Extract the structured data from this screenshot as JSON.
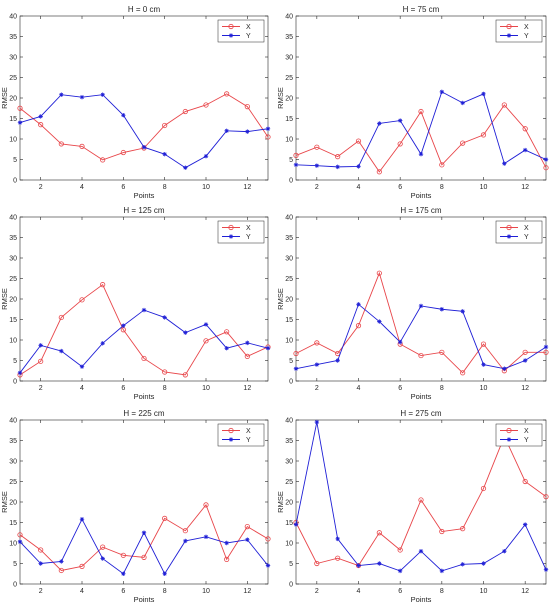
{
  "chart_data": [
    {
      "type": "line",
      "title": "H = 0 cm",
      "xlabel": "Points",
      "ylabel": "RMSE",
      "xlim": [
        1,
        13
      ],
      "ylim": [
        0,
        40
      ],
      "x_ticks": [
        2,
        4,
        6,
        8,
        10,
        12
      ],
      "y_ticks": [
        0,
        5,
        10,
        15,
        20,
        25,
        30,
        35,
        40
      ],
      "x": [
        1,
        2,
        3,
        4,
        5,
        6,
        7,
        8,
        9,
        10,
        11,
        12,
        13
      ],
      "legend_position": "top-right",
      "series": [
        {
          "name": "X",
          "color": "#e8464a",
          "marker": "circle",
          "values": [
            17.5,
            13.5,
            8.8,
            8.2,
            4.9,
            6.7,
            7.8,
            13.3,
            16.7,
            18.3,
            21.0,
            17.9,
            10.5
          ]
        },
        {
          "name": "Y",
          "color": "#1f1fd6",
          "marker": "star",
          "values": [
            14.0,
            15.5,
            20.8,
            20.2,
            20.8,
            15.8,
            8.0,
            6.3,
            3.0,
            5.8,
            12.0,
            11.8,
            12.5
          ]
        }
      ]
    },
    {
      "type": "line",
      "title": "H = 75 cm",
      "xlabel": "Points",
      "ylabel": "RMSE",
      "xlim": [
        1,
        13
      ],
      "ylim": [
        0,
        40
      ],
      "x_ticks": [
        2,
        4,
        6,
        8,
        10,
        12
      ],
      "y_ticks": [
        0,
        5,
        10,
        15,
        20,
        25,
        30,
        35,
        40
      ],
      "x": [
        1,
        2,
        3,
        4,
        5,
        6,
        7,
        8,
        9,
        10,
        11,
        12,
        13
      ],
      "legend_position": "top-right",
      "series": [
        {
          "name": "X",
          "color": "#e8464a",
          "marker": "circle",
          "values": [
            6.0,
            8.0,
            5.7,
            9.5,
            2.0,
            8.8,
            16.7,
            3.7,
            9.0,
            11.0,
            18.3,
            12.5,
            3.0
          ]
        },
        {
          "name": "Y",
          "color": "#1f1fd6",
          "marker": "star",
          "values": [
            3.7,
            3.5,
            3.2,
            3.3,
            13.8,
            14.5,
            6.3,
            21.5,
            18.8,
            21.0,
            4.0,
            7.3,
            5.0
          ]
        }
      ]
    },
    {
      "type": "line",
      "title": "H = 125 cm",
      "xlabel": "Points",
      "ylabel": "RMSE",
      "xlim": [
        1,
        13
      ],
      "ylim": [
        0,
        40
      ],
      "x_ticks": [
        2,
        4,
        6,
        8,
        10,
        12
      ],
      "y_ticks": [
        0,
        5,
        10,
        15,
        20,
        25,
        30,
        35,
        40
      ],
      "x": [
        1,
        2,
        3,
        4,
        5,
        6,
        7,
        8,
        9,
        10,
        11,
        12,
        13
      ],
      "legend_position": "top-right",
      "series": [
        {
          "name": "X",
          "color": "#e8464a",
          "marker": "circle",
          "values": [
            1.5,
            4.8,
            15.5,
            19.8,
            23.5,
            12.5,
            5.5,
            2.2,
            1.5,
            9.8,
            12.0,
            6.0,
            8.3
          ]
        },
        {
          "name": "Y",
          "color": "#1f1fd6",
          "marker": "star",
          "values": [
            2.0,
            8.7,
            7.3,
            3.5,
            9.2,
            13.5,
            17.3,
            15.5,
            11.8,
            13.8,
            8.0,
            9.3,
            8.0
          ]
        }
      ]
    },
    {
      "type": "line",
      "title": "H = 175 cm",
      "xlabel": "Points",
      "ylabel": "RMSE",
      "xlim": [
        1,
        13
      ],
      "ylim": [
        0,
        40
      ],
      "x_ticks": [
        2,
        4,
        6,
        8,
        10,
        12
      ],
      "y_ticks": [
        0,
        5,
        10,
        15,
        20,
        25,
        30,
        35,
        40
      ],
      "x": [
        1,
        2,
        3,
        4,
        5,
        6,
        7,
        8,
        9,
        10,
        11,
        12,
        13
      ],
      "legend_position": "top-right",
      "series": [
        {
          "name": "X",
          "color": "#e8464a",
          "marker": "circle",
          "values": [
            6.7,
            9.3,
            6.7,
            13.5,
            26.3,
            9.0,
            6.2,
            7.0,
            2.0,
            9.0,
            2.5,
            7.0,
            7.0
          ]
        },
        {
          "name": "Y",
          "color": "#1f1fd6",
          "marker": "star",
          "values": [
            3.0,
            4.0,
            5.0,
            18.7,
            14.5,
            9.5,
            18.3,
            17.5,
            17.0,
            4.0,
            3.0,
            5.0,
            8.3
          ]
        }
      ]
    },
    {
      "type": "line",
      "title": "H = 225 cm",
      "xlabel": "Points",
      "ylabel": "RMSE",
      "xlim": [
        1,
        13
      ],
      "ylim": [
        0,
        40
      ],
      "x_ticks": [
        2,
        4,
        6,
        8,
        10,
        12
      ],
      "y_ticks": [
        0,
        5,
        10,
        15,
        20,
        25,
        30,
        35,
        40
      ],
      "x": [
        1,
        2,
        3,
        4,
        5,
        6,
        7,
        8,
        9,
        10,
        11,
        12,
        13
      ],
      "legend_position": "top-right",
      "series": [
        {
          "name": "X",
          "color": "#e8464a",
          "marker": "circle",
          "values": [
            12.0,
            8.3,
            3.3,
            4.3,
            9.0,
            7.0,
            6.5,
            16.0,
            13.0,
            19.3,
            6.0,
            14.0,
            11.0
          ]
        },
        {
          "name": "Y",
          "color": "#1f1fd6",
          "marker": "star",
          "values": [
            10.3,
            5.0,
            5.5,
            15.8,
            6.2,
            2.5,
            12.5,
            2.5,
            10.5,
            11.5,
            10.0,
            10.8,
            4.5
          ]
        }
      ]
    },
    {
      "type": "line",
      "title": "H = 275 cm",
      "xlabel": "Points",
      "ylabel": "RMSE",
      "xlim": [
        1,
        13
      ],
      "ylim": [
        0,
        40
      ],
      "x_ticks": [
        2,
        4,
        6,
        8,
        10,
        12
      ],
      "y_ticks": [
        0,
        5,
        10,
        15,
        20,
        25,
        30,
        35,
        40
      ],
      "x": [
        1,
        2,
        3,
        4,
        5,
        6,
        7,
        8,
        9,
        10,
        11,
        12,
        13
      ],
      "legend_position": "top-right",
      "series": [
        {
          "name": "X",
          "color": "#e8464a",
          "marker": "circle",
          "values": [
            15.0,
            5.0,
            6.3,
            4.5,
            12.5,
            8.3,
            20.5,
            12.8,
            13.5,
            23.3,
            36.0,
            25.0,
            21.3
          ]
        },
        {
          "name": "Y",
          "color": "#1f1fd6",
          "marker": "star",
          "values": [
            14.5,
            39.5,
            11.0,
            4.5,
            5.0,
            3.2,
            8.0,
            3.2,
            4.8,
            5.0,
            8.0,
            14.5,
            3.5
          ]
        }
      ]
    }
  ]
}
